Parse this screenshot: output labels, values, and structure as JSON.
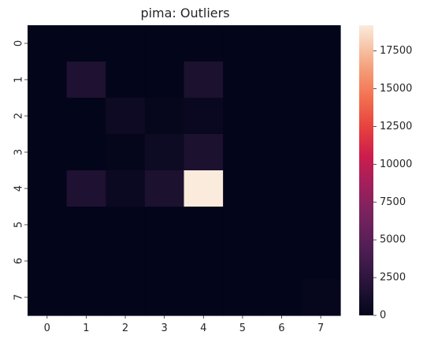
{
  "chart_data": {
    "type": "heatmap",
    "title": "pima: Outliers",
    "xlabel": "",
    "ylabel": "",
    "x_labels": [
      "0",
      "1",
      "2",
      "3",
      "4",
      "5",
      "6",
      "7"
    ],
    "y_labels": [
      "0",
      "1",
      "2",
      "3",
      "4",
      "5",
      "6",
      "7"
    ],
    "values": [
      [
        0,
        0,
        0,
        0,
        0,
        0,
        0,
        0
      ],
      [
        0,
        1600,
        0,
        0,
        1500,
        0,
        0,
        0
      ],
      [
        0,
        0,
        700,
        200,
        400,
        0,
        0,
        0
      ],
      [
        0,
        0,
        100,
        600,
        1500,
        0,
        0,
        0
      ],
      [
        0,
        1600,
        500,
        1500,
        19200,
        0,
        0,
        0
      ],
      [
        0,
        0,
        0,
        0,
        0,
        0,
        0,
        0
      ],
      [
        0,
        0,
        0,
        0,
        0,
        0,
        0,
        0
      ],
      [
        0,
        0,
        0,
        0,
        0,
        0,
        0,
        150
      ]
    ],
    "colorbar": {
      "min": 0,
      "max": 19200,
      "ticks": [
        0,
        2500,
        5000,
        7500,
        10000,
        12500,
        15000,
        17500
      ],
      "colormap": "rocket",
      "position": "right"
    }
  }
}
